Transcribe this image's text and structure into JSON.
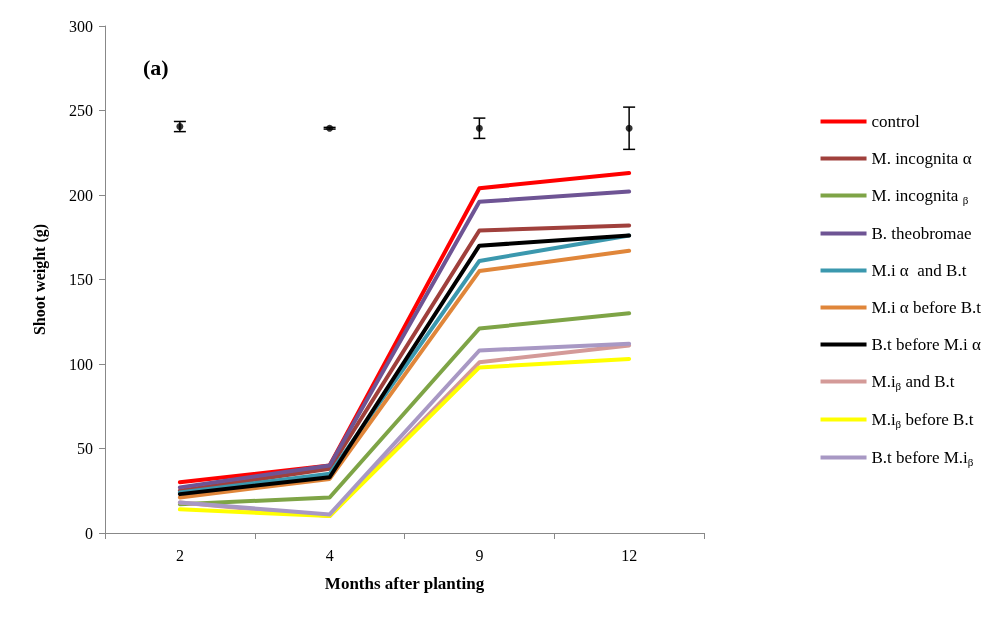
{
  "chart_data": {
    "type": "line",
    "annotations": [
      "(a)"
    ],
    "xlabel": "Months after planting",
    "ylabel": "Shoot weight (g)",
    "categories": [
      "2",
      "4",
      "9",
      "12"
    ],
    "ylim": [
      0,
      300
    ],
    "yticks": [
      0,
      50,
      100,
      150,
      200,
      250,
      300
    ],
    "grid": false,
    "legend": "right",
    "marker": "none",
    "line_style": "solid",
    "series": [
      {
        "name": "control",
        "color": "#ff0000",
        "values": [
          30,
          40,
          204,
          213
        ]
      },
      {
        "name": "M. incognita α",
        "color": "#a0403c",
        "values": [
          25,
          38,
          179,
          182
        ]
      },
      {
        "name": "M. incognita $_{β}$",
        "color": "#7ea446",
        "values": [
          17,
          21,
          121,
          130
        ]
      },
      {
        "name": "B. theobromae",
        "color": "#6e5494",
        "values": [
          27,
          40,
          196,
          202
        ]
      },
      {
        "name": "M.i α  and B.t",
        "color": "#3b98ae",
        "values": [
          24,
          35,
          161,
          176
        ]
      },
      {
        "name": "M.i α before B.t",
        "color": "#e0863a",
        "values": [
          21,
          32,
          155,
          167
        ]
      },
      {
        "name": "B.t before M.i α",
        "color": "#000000",
        "values": [
          23,
          33,
          170,
          176
        ]
      },
      {
        "name": "M.i$_{β}$ and B.t",
        "color": "#d49a98",
        "values": [
          18,
          10,
          101,
          111
        ]
      },
      {
        "name": "M.i$_{β}$ before B.t",
        "color": "#ffff00",
        "values": [
          14,
          10,
          98,
          103
        ]
      },
      {
        "name": "B.t before M.i$_{β}$",
        "color": "#a898c4",
        "values": [
          18,
          11,
          108,
          112
        ]
      },
      {
        "type": "scatter",
        "marker": "circle",
        "color": "#000000",
        "values": [
          240.5,
          239.5,
          239.5,
          239.5
        ],
        "errors": [
          [
            237.5,
            243.5
          ],
          [
            239,
            240
          ],
          [
            233.5,
            245.5
          ],
          [
            227,
            252
          ]
        ]
      }
    ]
  }
}
